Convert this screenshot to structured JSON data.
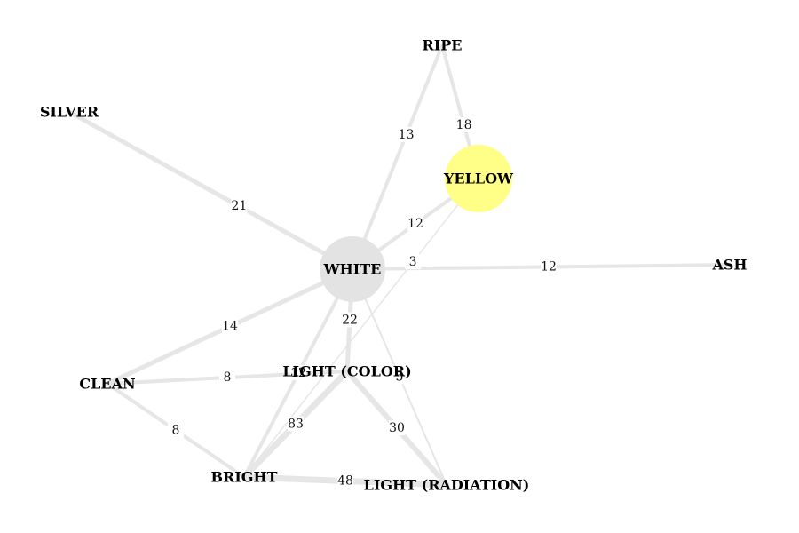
{
  "graph": {
    "nodes": [
      {
        "id": "white",
        "label": "WHITE",
        "circle_color": "#e3e3e3"
      },
      {
        "id": "yellow",
        "label": "YELLOW",
        "circle_color": "#ffff88"
      },
      {
        "id": "ripe",
        "label": "RIPE"
      },
      {
        "id": "silver",
        "label": "SILVER"
      },
      {
        "id": "ash",
        "label": "ASH"
      },
      {
        "id": "clean",
        "label": "CLEAN"
      },
      {
        "id": "light_color",
        "label": "LIGHT (COLOR)"
      },
      {
        "id": "bright",
        "label": "BRIGHT"
      },
      {
        "id": "light_radiation",
        "label": "LIGHT (RADIATION)"
      }
    ],
    "edges": [
      {
        "source": "silver",
        "target": "white",
        "weight": "21"
      },
      {
        "source": "ripe",
        "target": "white",
        "weight": "13"
      },
      {
        "source": "ripe",
        "target": "yellow",
        "weight": "18"
      },
      {
        "source": "white",
        "target": "yellow",
        "weight": "12"
      },
      {
        "source": "white",
        "target": "ash",
        "weight": "12"
      },
      {
        "source": "yellow",
        "target": "bright",
        "weight": "3"
      },
      {
        "source": "white",
        "target": "clean",
        "weight": "14"
      },
      {
        "source": "white",
        "target": "light_color",
        "weight": "22"
      },
      {
        "source": "white",
        "target": "light_radiation",
        "weight": "5"
      },
      {
        "source": "white",
        "target": "bright",
        "weight": "12"
      },
      {
        "source": "clean",
        "target": "light_color",
        "weight": "8"
      },
      {
        "source": "clean",
        "target": "bright",
        "weight": "8"
      },
      {
        "source": "light_color",
        "target": "bright",
        "weight": "83"
      },
      {
        "source": "light_color",
        "target": "light_radiation",
        "weight": "30"
      },
      {
        "source": "bright",
        "target": "light_radiation",
        "weight": "48"
      }
    ],
    "edge_color": "#e6e6e6"
  }
}
